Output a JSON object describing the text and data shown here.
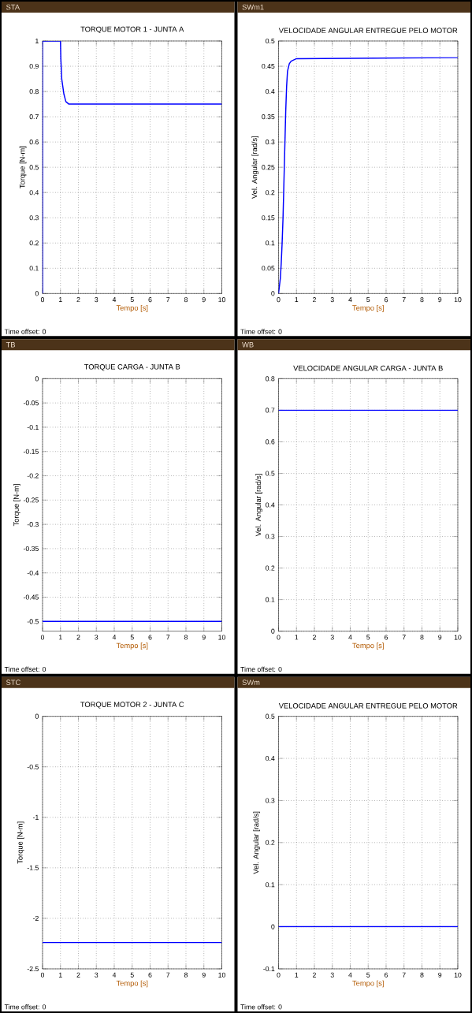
{
  "chart_data": [
    {
      "type": "line",
      "title": "TORQUE MOTOR 1 - JUNTA A",
      "xlabel": "Tempo [s]",
      "ylabel": "Torque [N-m]",
      "annotations": [
        "STA",
        "Time offset: 0"
      ],
      "color": "#0000ff",
      "grid": true,
      "xlim": [
        0,
        10
      ],
      "xticks": [
        0,
        1,
        2,
        3,
        4,
        5,
        6,
        7,
        8,
        9,
        10
      ],
      "ylim": [
        0,
        1
      ],
      "yticks": [
        0,
        0.1,
        0.2,
        0.3,
        0.4,
        0.5,
        0.6,
        0.7,
        0.8,
        0.9,
        1
      ],
      "x": [
        0,
        0,
        1,
        1.02,
        1.07,
        1.19,
        1.3,
        1.47,
        10
      ],
      "values": [
        0,
        1,
        1,
        0.93,
        0.85,
        0.79,
        0.76,
        0.75,
        0.75
      ]
    },
    {
      "type": "line",
      "title": "TORQUE CARGA - JUNTA B",
      "xlabel": "Tempo [s]",
      "ylabel": "Torque [N-m]",
      "annotations": [
        "TB",
        "Time offset: 0"
      ],
      "color": "#0000ff",
      "grid": true,
      "xlim": [
        0,
        10
      ],
      "xticks": [
        0,
        1,
        2,
        3,
        4,
        5,
        6,
        7,
        8,
        9,
        10
      ],
      "ylim": [
        -0.52,
        0
      ],
      "yticks": [
        -0.5,
        -0.45,
        -0.4,
        -0.35,
        -0.3,
        -0.25,
        -0.2,
        -0.15,
        -0.1,
        -0.05,
        0
      ],
      "x": [
        0,
        10
      ],
      "values": [
        -0.5,
        -0.5
      ]
    },
    {
      "type": "line",
      "title": "TORQUE MOTOR 2 - JUNTA C",
      "xlabel": "Tempo [s]",
      "ylabel": "Torque [N-m]",
      "annotations": [
        "STC",
        "Time offset: 0"
      ],
      "color": "#0000ff",
      "grid": true,
      "xlim": [
        0,
        10
      ],
      "xticks": [
        0,
        1,
        2,
        3,
        4,
        5,
        6,
        7,
        8,
        9,
        10
      ],
      "ylim": [
        -2.5,
        0
      ],
      "yticks": [
        -2.5,
        -2,
        -1.5,
        -1,
        -0.5,
        0
      ],
      "x": [
        0,
        10
      ],
      "values": [
        -2.24,
        -2.24
      ]
    },
    {
      "type": "line",
      "title": "VELOCIDADE ANGULAR ENTREGUE PELO MOTOR",
      "xlabel": "Tempo [s]",
      "ylabel": "Vel. Angular [rad/s]",
      "annotations": [
        "SWm1",
        "Time offset: 0"
      ],
      "color": "#0000ff",
      "grid": true,
      "xlim": [
        0,
        10
      ],
      "xticks": [
        0,
        1,
        2,
        3,
        4,
        5,
        6,
        7,
        8,
        9,
        10
      ],
      "ylim": [
        0,
        0.5
      ],
      "yticks": [
        0,
        0.05,
        0.1,
        0.15,
        0.2,
        0.25,
        0.3,
        0.35,
        0.4,
        0.45,
        0.5
      ],
      "x": [
        0,
        0.1,
        0.15,
        0.2,
        0.25,
        0.3,
        0.35,
        0.4,
        0.45,
        0.5,
        0.6,
        0.7,
        1,
        10
      ],
      "values": [
        0,
        0.03,
        0.06,
        0.1,
        0.15,
        0.22,
        0.29,
        0.36,
        0.41,
        0.44,
        0.455,
        0.46,
        0.465,
        0.467
      ]
    },
    {
      "type": "line",
      "title": "VELOCIDADE ANGULAR CARGA - JUNTA B",
      "xlabel": "Tempo [s]",
      "ylabel": "Vel. Angular [rad/s]",
      "annotations": [
        "WB",
        "Time offset: 0"
      ],
      "color": "#0000ff",
      "grid": true,
      "xlim": [
        0,
        10
      ],
      "xticks": [
        0,
        1,
        2,
        3,
        4,
        5,
        6,
        7,
        8,
        9,
        10
      ],
      "ylim": [
        0,
        0.8
      ],
      "yticks": [
        0,
        0.1,
        0.2,
        0.3,
        0.4,
        0.5,
        0.6,
        0.7,
        0.8
      ],
      "x": [
        0,
        10
      ],
      "values": [
        0.7,
        0.7
      ]
    },
    {
      "type": "line",
      "title": "VELOCIDADE ANGULAR ENTREGUE PELO MOTOR",
      "xlabel": "Tempo [s]",
      "ylabel": "Vel. Angular [rad/s]",
      "annotations": [
        "SWm",
        "Time offset: 0"
      ],
      "color": "#0000ff",
      "grid": true,
      "xlim": [
        0,
        10
      ],
      "xticks": [
        0,
        1,
        2,
        3,
        4,
        5,
        6,
        7,
        8,
        9,
        10
      ],
      "ylim": [
        -0.1,
        0.5
      ],
      "yticks": [
        -0.1,
        0,
        0.1,
        0.2,
        0.3,
        0.4,
        0.5
      ],
      "x": [
        0,
        10
      ],
      "values": [
        0,
        0
      ]
    }
  ]
}
